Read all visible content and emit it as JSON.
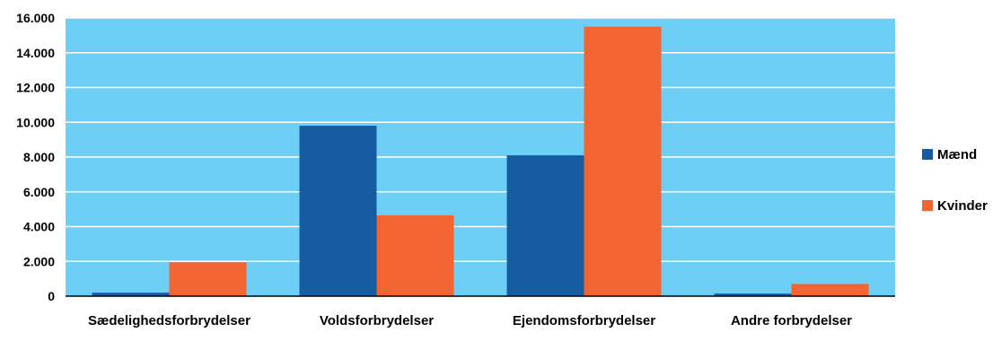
{
  "chart_data": {
    "type": "bar",
    "title": "",
    "xlabel": "",
    "ylabel": "",
    "categories": [
      "Sædelighedsforbrydelser",
      "Voldsforbrydelser",
      "Ejendomsforbrydelser",
      "Andre forbrydelser"
    ],
    "series": [
      {
        "name": "Mænd",
        "color": "#165ca1",
        "values": [
          200,
          9800,
          8100,
          150
        ]
      },
      {
        "name": "Kvinder",
        "color": "#f26532",
        "values": [
          1950,
          4650,
          15500,
          700
        ]
      }
    ],
    "ylim": [
      0,
      16000
    ],
    "yticks": [
      0,
      2000,
      4000,
      6000,
      8000,
      10000,
      12000,
      14000,
      16000
    ],
    "ytick_labels": [
      "0",
      "2.000",
      "4.000",
      "6.000",
      "8.000",
      "10.000",
      "12.000",
      "14.000",
      "16.000"
    ],
    "grid": true,
    "legend_position": "right",
    "plot_background": "#6ecff6",
    "grid_color": "#ffffff"
  }
}
